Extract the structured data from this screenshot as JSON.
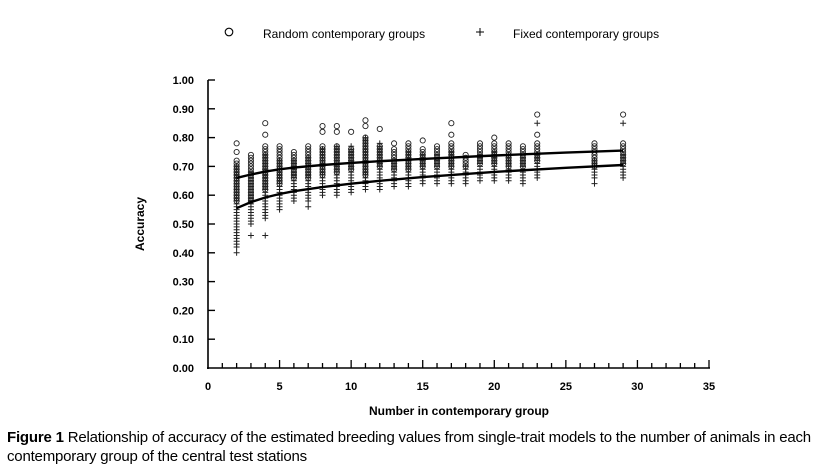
{
  "chart_data": {
    "type": "scatter",
    "title": "",
    "xlabel": "Number in contemporary group",
    "ylabel": "Accuracy",
    "xlim": [
      0,
      35
    ],
    "ylim": [
      0.0,
      1.0
    ],
    "x_ticks": [
      "0",
      "5",
      "10",
      "15",
      "20",
      "25",
      "30",
      "35"
    ],
    "x_tick_values": [
      0,
      5,
      10,
      15,
      20,
      25,
      30,
      35
    ],
    "x_minor_step": 1,
    "y_ticks": [
      "0.00",
      "0.10",
      "0.20",
      "0.30",
      "0.40",
      "0.50",
      "0.60",
      "0.70",
      "0.80",
      "0.90",
      "1.00"
    ],
    "y_tick_values": [
      0.0,
      0.1,
      0.2,
      0.3,
      0.4,
      0.5,
      0.6,
      0.7,
      0.8,
      0.9,
      1.0
    ],
    "grid": false,
    "legend_position": "top",
    "legend": [
      {
        "name": "Random contemporary groups",
        "marker": "circle"
      },
      {
        "name": "Fixed contemporary groups",
        "marker": "plus"
      }
    ],
    "series": [
      {
        "name": "Random contemporary groups",
        "marker": "circle",
        "columns": [
          {
            "x": 2,
            "min": 0.58,
            "max": 0.72,
            "extra": [
              0.75,
              0.78
            ]
          },
          {
            "x": 3,
            "min": 0.58,
            "max": 0.74,
            "extra": []
          },
          {
            "x": 4,
            "min": 0.62,
            "max": 0.77,
            "extra": [
              0.81,
              0.85
            ]
          },
          {
            "x": 5,
            "min": 0.64,
            "max": 0.77,
            "extra": []
          },
          {
            "x": 6,
            "min": 0.66,
            "max": 0.75,
            "extra": []
          },
          {
            "x": 7,
            "min": 0.66,
            "max": 0.77,
            "extra": []
          },
          {
            "x": 8,
            "min": 0.67,
            "max": 0.77,
            "extra": [
              0.82,
              0.84
            ]
          },
          {
            "x": 9,
            "min": 0.68,
            "max": 0.77,
            "extra": [
              0.82,
              0.84
            ]
          },
          {
            "x": 10,
            "min": 0.69,
            "max": 0.76,
            "extra": [
              0.82
            ]
          },
          {
            "x": 11,
            "min": 0.67,
            "max": 0.8,
            "extra": [
              0.84,
              0.86
            ]
          },
          {
            "x": 12,
            "min": 0.7,
            "max": 0.77,
            "extra": [
              0.83
            ]
          },
          {
            "x": 13,
            "min": 0.69,
            "max": 0.76,
            "extra": [
              0.78
            ]
          },
          {
            "x": 14,
            "min": 0.69,
            "max": 0.78,
            "extra": []
          },
          {
            "x": 15,
            "min": 0.7,
            "max": 0.76,
            "extra": [
              0.79
            ]
          },
          {
            "x": 16,
            "min": 0.7,
            "max": 0.77,
            "extra": []
          },
          {
            "x": 17,
            "min": 0.7,
            "max": 0.78,
            "extra": [
              0.81,
              0.85
            ]
          },
          {
            "x": 18,
            "min": 0.7,
            "max": 0.74,
            "extra": []
          },
          {
            "x": 19,
            "min": 0.71,
            "max": 0.78,
            "extra": []
          },
          {
            "x": 20,
            "min": 0.71,
            "max": 0.78,
            "extra": [
              0.8
            ]
          },
          {
            "x": 21,
            "min": 0.7,
            "max": 0.78,
            "extra": []
          },
          {
            "x": 22,
            "min": 0.7,
            "max": 0.77,
            "extra": []
          },
          {
            "x": 23,
            "min": 0.72,
            "max": 0.78,
            "extra": [
              0.81,
              0.88
            ]
          },
          {
            "x": 27,
            "min": 0.7,
            "max": 0.78,
            "extra": []
          },
          {
            "x": 29,
            "min": 0.71,
            "max": 0.78,
            "extra": [
              0.88
            ]
          }
        ]
      },
      {
        "name": "Fixed contemporary groups",
        "marker": "plus",
        "columns": [
          {
            "x": 2,
            "min": 0.42,
            "max": 0.7,
            "extra": [
              0.4
            ]
          },
          {
            "x": 3,
            "min": 0.5,
            "max": 0.68,
            "extra": [
              0.46
            ]
          },
          {
            "x": 4,
            "min": 0.52,
            "max": 0.74,
            "extra": [
              0.46
            ]
          },
          {
            "x": 5,
            "min": 0.55,
            "max": 0.72,
            "extra": []
          },
          {
            "x": 6,
            "min": 0.58,
            "max": 0.72,
            "extra": []
          },
          {
            "x": 7,
            "min": 0.58,
            "max": 0.73,
            "extra": [
              0.56
            ]
          },
          {
            "x": 8,
            "min": 0.6,
            "max": 0.76,
            "extra": []
          },
          {
            "x": 9,
            "min": 0.6,
            "max": 0.77,
            "extra": []
          },
          {
            "x": 10,
            "min": 0.61,
            "max": 0.77,
            "extra": []
          },
          {
            "x": 11,
            "min": 0.62,
            "max": 0.8,
            "extra": []
          },
          {
            "x": 12,
            "min": 0.62,
            "max": 0.78,
            "extra": []
          },
          {
            "x": 13,
            "min": 0.63,
            "max": 0.72,
            "extra": []
          },
          {
            "x": 14,
            "min": 0.63,
            "max": 0.75,
            "extra": []
          },
          {
            "x": 15,
            "min": 0.64,
            "max": 0.74,
            "extra": []
          },
          {
            "x": 16,
            "min": 0.64,
            "max": 0.74,
            "extra": []
          },
          {
            "x": 17,
            "min": 0.64,
            "max": 0.75,
            "extra": []
          },
          {
            "x": 18,
            "min": 0.64,
            "max": 0.7,
            "extra": []
          },
          {
            "x": 19,
            "min": 0.65,
            "max": 0.74,
            "extra": []
          },
          {
            "x": 20,
            "min": 0.65,
            "max": 0.75,
            "extra": []
          },
          {
            "x": 21,
            "min": 0.65,
            "max": 0.74,
            "extra": []
          },
          {
            "x": 22,
            "min": 0.65,
            "max": 0.73,
            "extra": [
              0.64
            ]
          },
          {
            "x": 23,
            "min": 0.66,
            "max": 0.74,
            "extra": [
              0.85
            ]
          },
          {
            "x": 27,
            "min": 0.66,
            "max": 0.72,
            "extra": [
              0.64
            ]
          },
          {
            "x": 29,
            "min": 0.66,
            "max": 0.74,
            "extra": [
              0.85
            ]
          }
        ]
      }
    ],
    "fitted_curves": [
      {
        "name": "Random contemporary groups fit",
        "x": [
          2,
          3,
          4,
          5,
          6,
          8,
          10,
          12,
          15,
          20,
          25,
          29
        ],
        "y": [
          0.66,
          0.672,
          0.682,
          0.69,
          0.696,
          0.705,
          0.712,
          0.718,
          0.726,
          0.738,
          0.748,
          0.755
        ]
      },
      {
        "name": "Fixed contemporary groups fit",
        "x": [
          2,
          3,
          4,
          5,
          6,
          8,
          10,
          12,
          15,
          20,
          25,
          29
        ],
        "y": [
          0.555,
          0.576,
          0.592,
          0.604,
          0.614,
          0.628,
          0.64,
          0.65,
          0.663,
          0.681,
          0.695,
          0.705
        ]
      }
    ]
  },
  "caption": {
    "label": "Figure 1",
    "text": " Relationship of accuracy of the estimated breeding values from single-trait models to the number of animals in each contemporary group of the central test stations"
  }
}
